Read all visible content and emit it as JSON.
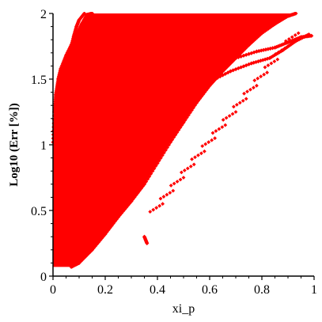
{
  "chart_data": {
    "type": "scatter",
    "title": "",
    "xlabel": "xi_p",
    "ylabel": "Log10 (Err [%])",
    "xlim": [
      0,
      1
    ],
    "ylim": [
      0,
      2
    ],
    "xticks": [
      "0",
      "0.2",
      "0.4",
      "0.6",
      "0.8",
      "1"
    ],
    "yticks": [
      "0",
      "0.5",
      "1",
      "1.5",
      "2"
    ],
    "grid": false,
    "marker_color": "#ff0000",
    "marker": "diamond",
    "series": [
      {
        "description_free": true,
        "envelope_top_cap": {
          "y": 2.0,
          "x": [
            0.08,
            0.93
          ]
        },
        "curves": [
          {
            "points": [
              [
                0.0,
                1.02
              ],
              [
                0.005,
                1.25
              ],
              [
                0.01,
                1.38
              ],
              [
                0.02,
                1.5
              ],
              [
                0.03,
                1.58
              ],
              [
                0.05,
                1.68
              ],
              [
                0.07,
                1.76
              ],
              [
                0.09,
                1.84
              ],
              [
                0.11,
                1.92
              ],
              [
                0.13,
                1.99
              ],
              [
                0.15,
                2.0
              ]
            ]
          },
          {
            "points": [
              [
                0.07,
                0.07
              ],
              [
                0.1,
                0.1
              ],
              [
                0.15,
                0.2
              ],
              [
                0.2,
                0.32
              ],
              [
                0.25,
                0.45
              ],
              [
                0.3,
                0.57
              ],
              [
                0.35,
                0.7
              ],
              [
                0.4,
                0.86
              ],
              [
                0.45,
                1.02
              ],
              [
                0.5,
                1.17
              ],
              [
                0.55,
                1.32
              ],
              [
                0.6,
                1.45
              ],
              [
                0.65,
                1.56
              ],
              [
                0.7,
                1.66
              ],
              [
                0.75,
                1.76
              ],
              [
                0.8,
                1.85
              ],
              [
                0.85,
                1.92
              ],
              [
                0.9,
                1.98
              ],
              [
                0.93,
                2.0
              ]
            ]
          },
          {
            "points": [
              [
                0.3,
                1.12
              ],
              [
                0.32,
                1.08
              ],
              [
                0.35,
                1.1
              ],
              [
                0.38,
                1.2
              ],
              [
                0.42,
                1.3
              ],
              [
                0.48,
                1.42
              ],
              [
                0.55,
                1.53
              ],
              [
                0.62,
                1.6
              ],
              [
                0.7,
                1.66
              ],
              [
                0.78,
                1.71
              ],
              [
                0.85,
                1.74
              ],
              [
                0.9,
                1.78
              ],
              [
                0.95,
                1.82
              ],
              [
                0.99,
                1.83
              ]
            ]
          },
          {
            "points": [
              [
                0.33,
                0.99
              ],
              [
                0.36,
                1.02
              ],
              [
                0.4,
                1.1
              ],
              [
                0.46,
                1.25
              ],
              [
                0.52,
                1.37
              ],
              [
                0.6,
                1.48
              ],
              [
                0.68,
                1.56
              ],
              [
                0.76,
                1.62
              ],
              [
                0.83,
                1.66
              ],
              [
                0.88,
                1.72
              ],
              [
                0.93,
                1.79
              ],
              [
                0.98,
                1.84
              ]
            ]
          },
          {
            "points": [
              [
                0.35,
                0.3
              ],
              [
                0.36,
                0.25
              ]
            ]
          },
          {
            "points": [
              [
                0.06,
                1.67
              ],
              [
                0.07,
                1.75
              ],
              [
                0.08,
                1.83
              ],
              [
                0.09,
                1.9
              ],
              [
                0.1,
                1.95
              ],
              [
                0.12,
                2.0
              ]
            ]
          }
        ]
      }
    ]
  }
}
